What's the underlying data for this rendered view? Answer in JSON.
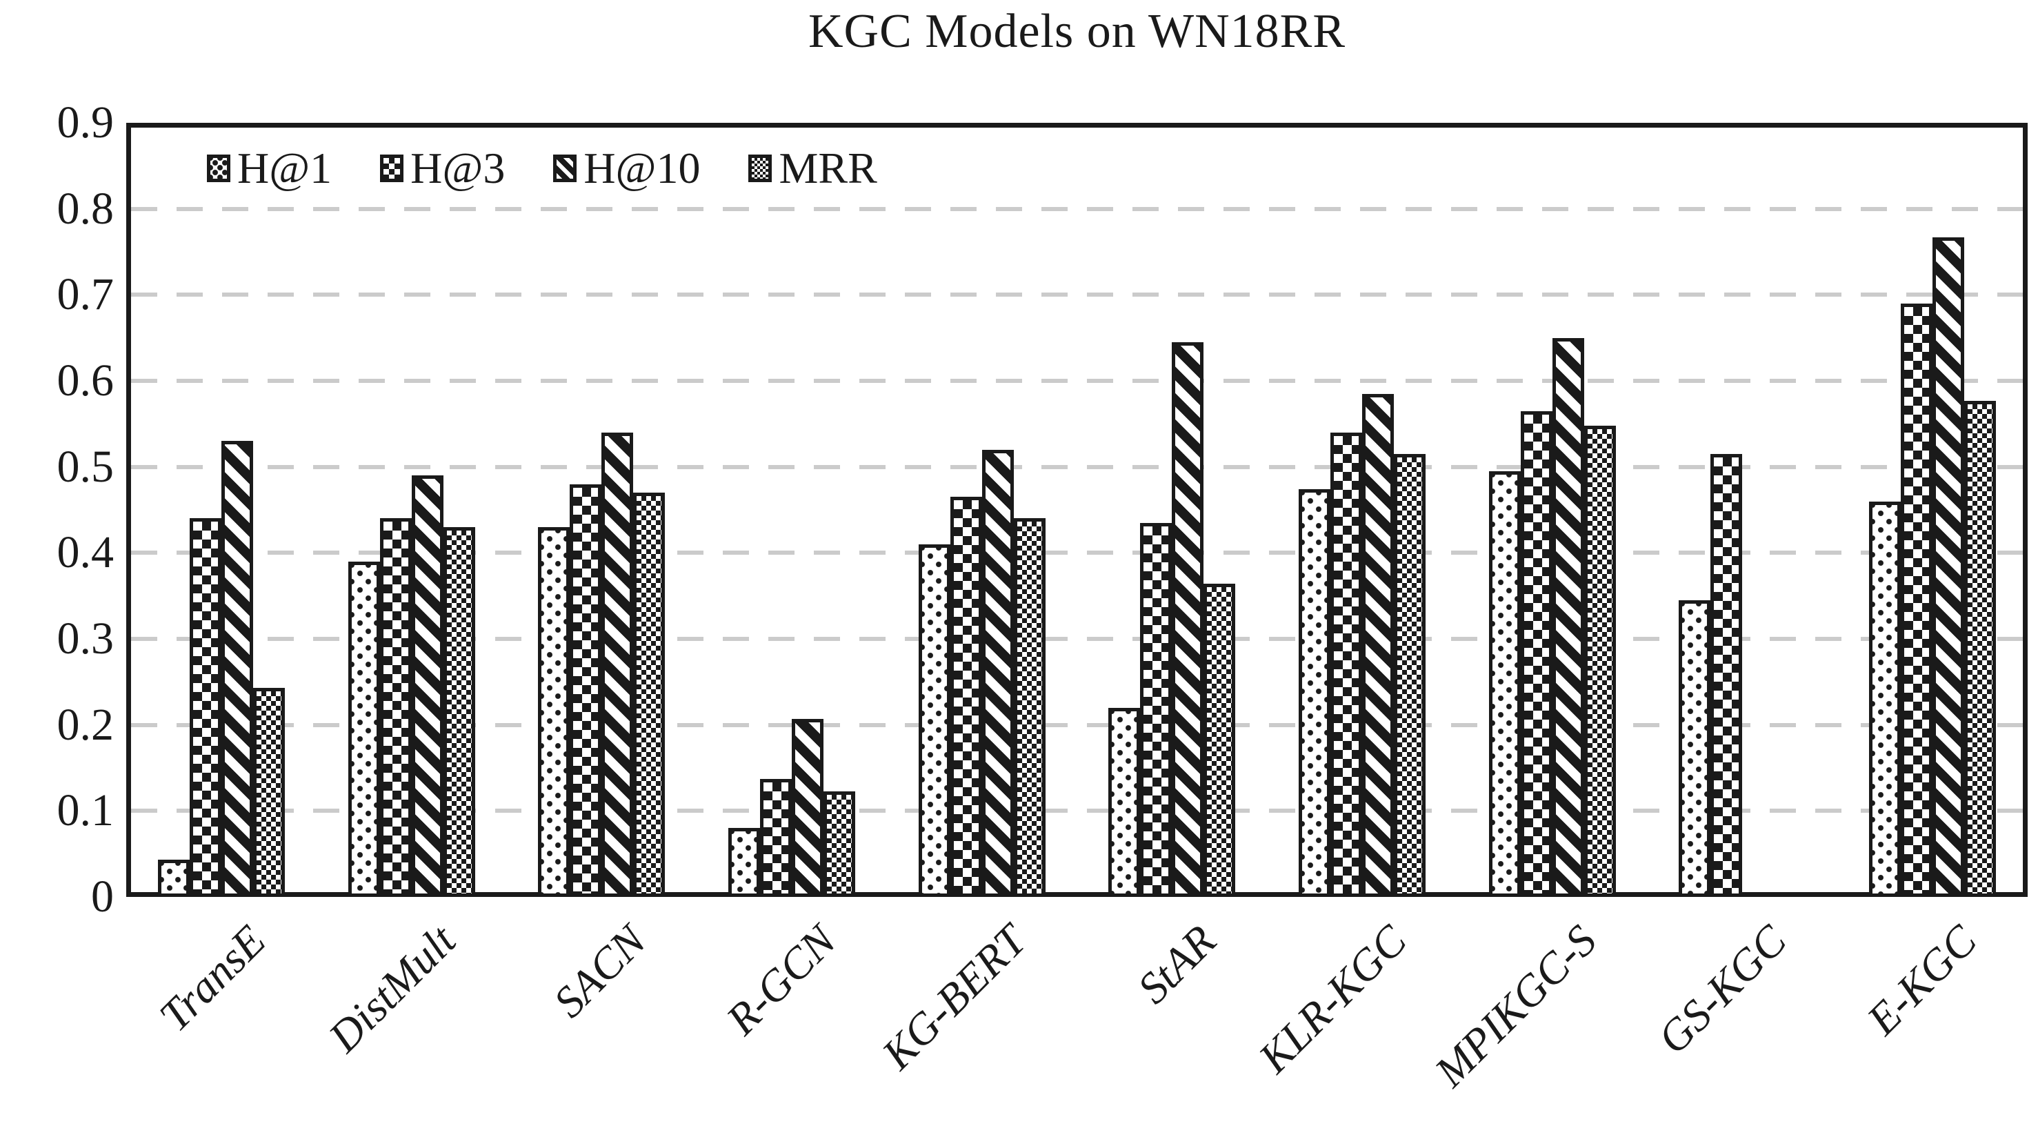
{
  "colors": {
    "ink": "#1a1a1a",
    "grid": "#cbcbcb",
    "background": "#ffffff"
  },
  "chart_data": {
    "type": "bar",
    "title": "KGC Models on WN18RR",
    "categories": [
      "TransE",
      "DistMult",
      "SACN",
      "R-GCN",
      "KG-BERT",
      "StAR",
      "KLR-KGC",
      "MPIKGC-S",
      "GS-KGC",
      "E-KGC"
    ],
    "series": [
      {
        "name": "H@1",
        "pattern": "dots",
        "values": [
          0.043,
          0.39,
          0.43,
          0.08,
          0.41,
          0.22,
          0.474,
          0.495,
          0.345,
          0.46
        ]
      },
      {
        "name": "H@3",
        "pattern": "checker-coarse",
        "values": [
          0.44,
          0.44,
          0.48,
          0.137,
          0.465,
          0.435,
          0.54,
          0.565,
          0.515,
          0.69
        ]
      },
      {
        "name": "H@10",
        "pattern": "diagonal",
        "values": [
          0.53,
          0.49,
          0.54,
          0.207,
          0.52,
          0.645,
          0.585,
          0.65,
          null,
          0.767
        ]
      },
      {
        "name": "MRR",
        "pattern": "checker-fine",
        "values": [
          0.243,
          0.43,
          0.47,
          0.123,
          0.44,
          0.364,
          0.515,
          0.548,
          null,
          0.577
        ]
      }
    ],
    "ylim": [
      0,
      0.9
    ],
    "yticks": [
      {
        "label": "0",
        "value": 0.0
      },
      {
        "label": "0.1",
        "value": 0.1
      },
      {
        "label": "0.2",
        "value": 0.2
      },
      {
        "label": "0.3",
        "value": 0.3
      },
      {
        "label": "0.4",
        "value": 0.4
      },
      {
        "label": "0.5",
        "value": 0.5
      },
      {
        "label": "0.6",
        "value": 0.6
      },
      {
        "label": "0.7",
        "value": 0.7
      },
      {
        "label": "0.8",
        "value": 0.8
      },
      {
        "label": "0.9",
        "value": 0.9
      }
    ],
    "grid": "horizontal-dashed",
    "legend_position": "top-left-inside"
  }
}
